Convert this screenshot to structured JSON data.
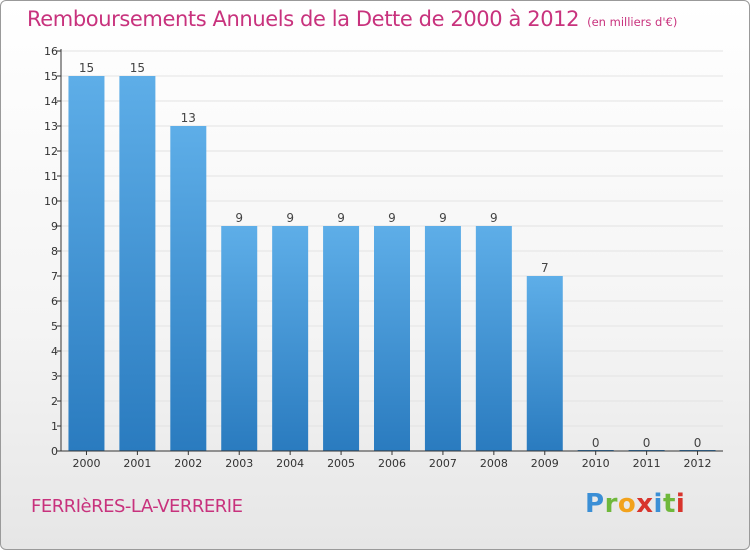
{
  "header": {
    "title": "Remboursements Annuels de la Dette de 2000 à 2012",
    "unit": "(en milliers d'€)"
  },
  "footer": {
    "commune": "FERRIèRES-LA-VERRERIE",
    "logo_letters": [
      {
        "char": "P",
        "color": "#3b8fd6"
      },
      {
        "char": "r",
        "color": "#6fb83b"
      },
      {
        "char": "o",
        "color": "#f2a21c"
      },
      {
        "char": "x",
        "color": "#d8342c"
      },
      {
        "char": "i",
        "color": "#3b8fd6"
      },
      {
        "char": "t",
        "color": "#6fb83b"
      },
      {
        "char": "i",
        "color": "#d8342c"
      }
    ]
  },
  "colors": {
    "accent": "#c8327d",
    "bar_light": "#5eaee8",
    "bar_dark": "#2a7bbf",
    "axis": "#333333",
    "grid": "#e3e3e3"
  },
  "chart_data": {
    "type": "bar",
    "title": "Remboursements Annuels de la Dette de 2000 à 2012",
    "subtitle": "(en milliers d'€)",
    "xlabel": "",
    "ylabel": "",
    "categories": [
      "2000",
      "2001",
      "2002",
      "2003",
      "2004",
      "2005",
      "2006",
      "2007",
      "2008",
      "2009",
      "2010",
      "2011",
      "2012"
    ],
    "values": [
      15,
      15,
      13,
      9,
      9,
      9,
      9,
      9,
      9,
      7,
      0,
      0,
      0
    ],
    "data_labels": [
      "15",
      "15",
      "13",
      "9",
      "9",
      "9",
      "9",
      "9",
      "9",
      "7",
      "0",
      "0",
      "0"
    ],
    "ylim": [
      0,
      16
    ],
    "yticks": [
      "0",
      "1",
      "2",
      "3",
      "4",
      "5",
      "6",
      "7",
      "8",
      "9",
      "10",
      "11",
      "12",
      "13",
      "14",
      "15",
      "16"
    ],
    "grid": true,
    "legend": "none"
  }
}
